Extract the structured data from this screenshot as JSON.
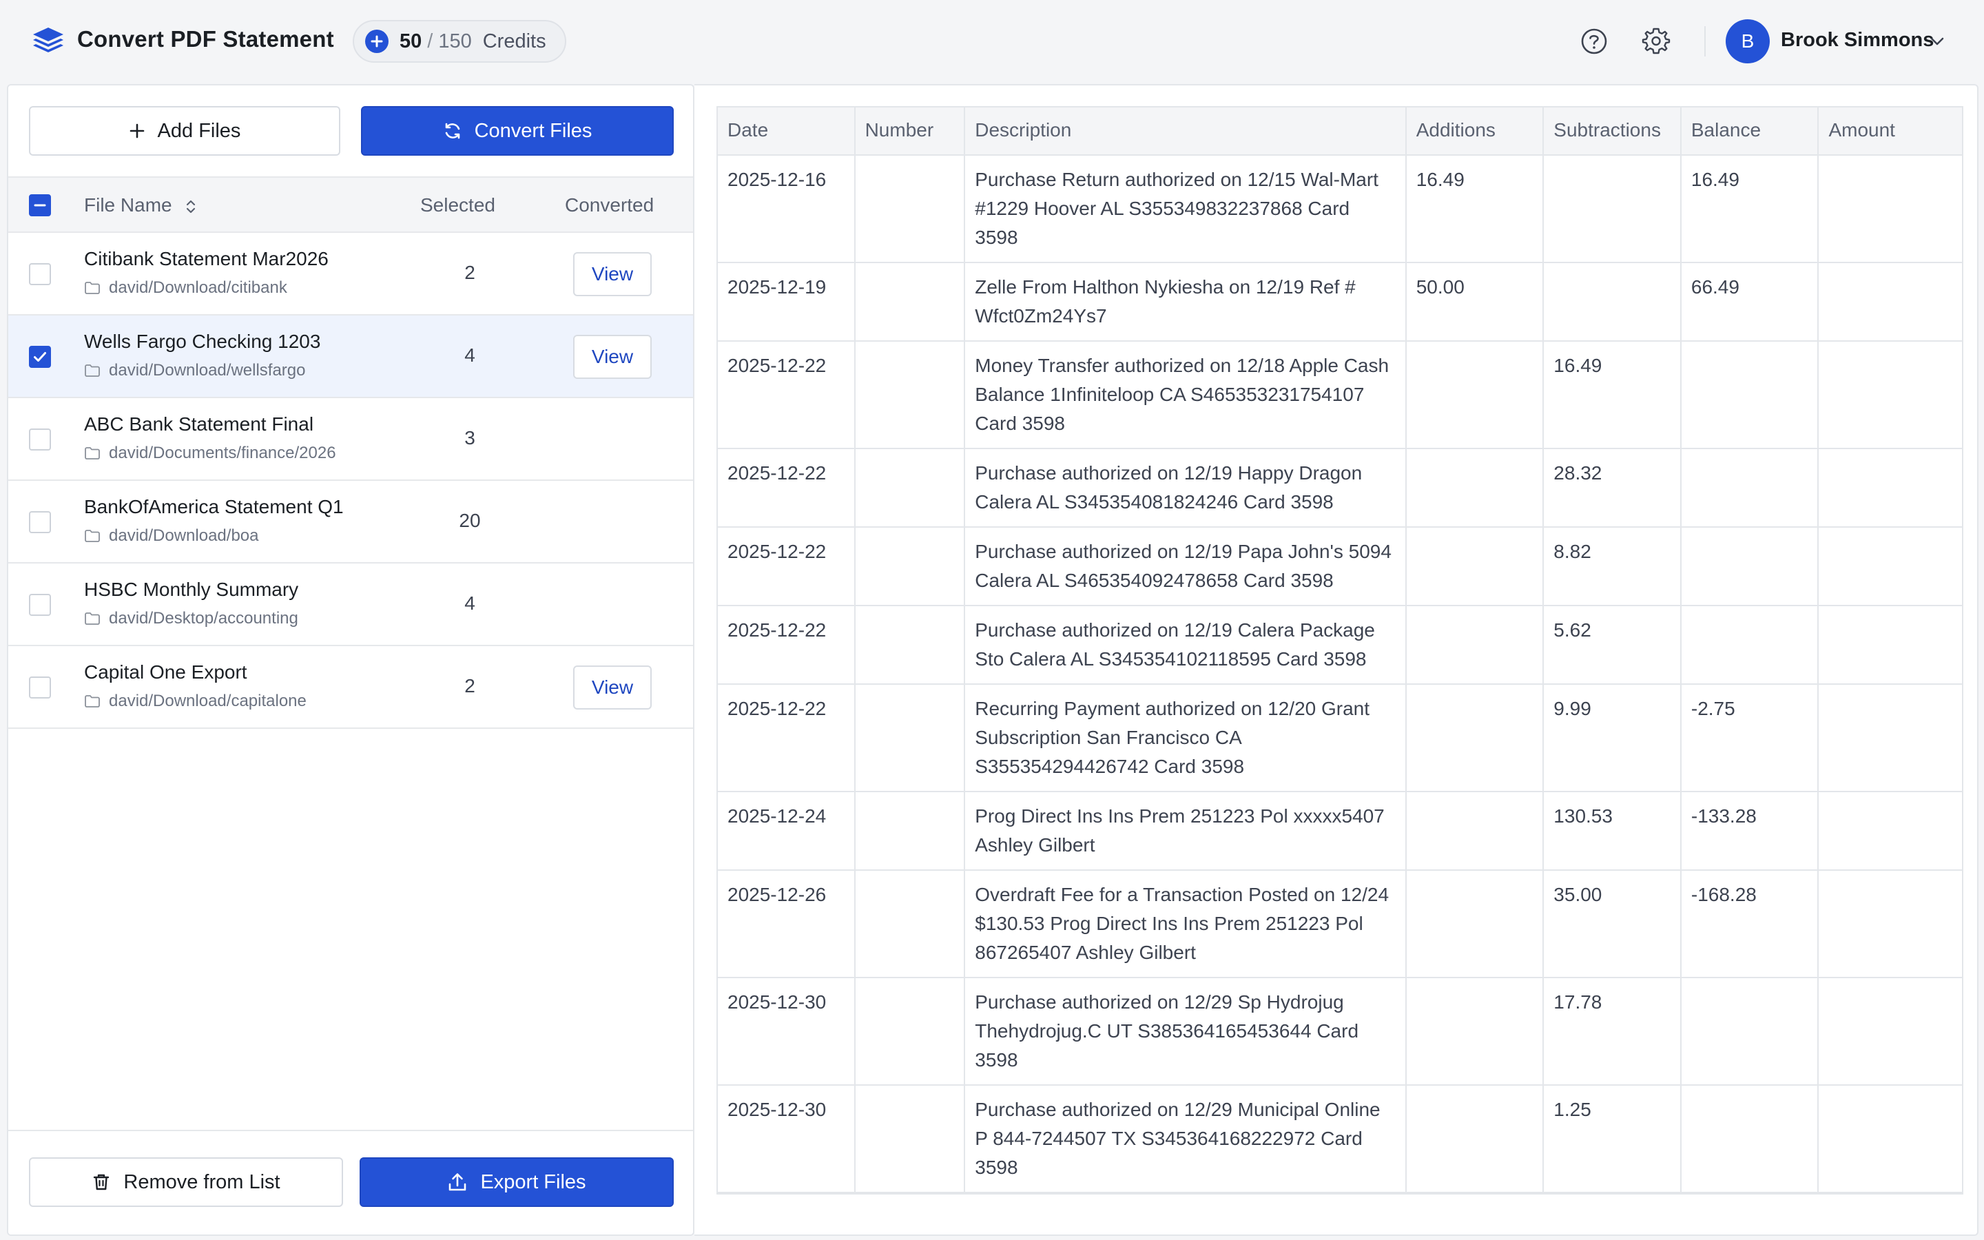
{
  "app": {
    "title": "Convert PDF Statement",
    "credits_used": "50",
    "credits_sep": "/",
    "credits_total": "150",
    "credits_label": "Credits"
  },
  "user": {
    "initial": "B",
    "name": "Brook Simmons"
  },
  "left": {
    "add_files": "Add Files",
    "convert_files": "Convert Files",
    "col_file_name": "File Name",
    "col_selected": "Selected",
    "col_converted": "Converted",
    "remove": "Remove from List",
    "export": "Export Files"
  },
  "files": [
    {
      "name": "Citibank Statement Mar2026",
      "path": "david/Download/citibank",
      "selected": "2",
      "converted": "View",
      "checked": false
    },
    {
      "name": "Wells Fargo Checking 1203",
      "path": "david/Download/wellsfargo",
      "selected": "4",
      "converted": "View",
      "checked": true
    },
    {
      "name": "ABC Bank Statement Final",
      "path": "david/Documents/finance/2026",
      "selected": "3",
      "converted": "",
      "checked": false
    },
    {
      "name": "BankOfAmerica Statement Q1",
      "path": "david/Download/boa",
      "selected": "20",
      "converted": "",
      "checked": false
    },
    {
      "name": "HSBC Monthly Summary",
      "path": "david/Desktop/accounting",
      "selected": "4",
      "converted": "",
      "checked": false
    },
    {
      "name": "Capital One Export",
      "path": "david/Download/capitalone",
      "selected": "2",
      "converted": "View",
      "checked": false
    }
  ],
  "table": {
    "headers": [
      "Date",
      "Number",
      "Description",
      "Additions",
      "Subtractions",
      "Balance",
      "Amount"
    ],
    "rows": [
      [
        "2025-12-16",
        "",
        "Purchase Return authorized on 12/15 Wal-Mart #1229 Hoover AL S355349832237868 Card 3598",
        "16.49",
        "",
        "16.49",
        ""
      ],
      [
        "2025-12-19",
        "",
        "Zelle From Halthon Nykiesha on 12/19 Ref # Wfct0Zm24Ys7",
        "50.00",
        "",
        "66.49",
        ""
      ],
      [
        "2025-12-22",
        "",
        "Money Transfer authorized on 12/18 Apple Cash Balance 1Infiniteloop CA S465353231754107 Card 3598",
        "",
        "16.49",
        "",
        ""
      ],
      [
        "2025-12-22",
        "",
        "Purchase authorized on 12/19 Happy Dragon Calera AL S345354081824246 Card 3598",
        "",
        "28.32",
        "",
        ""
      ],
      [
        "2025-12-22",
        "",
        "Purchase authorized on 12/19 Papa John's 5094 Calera AL S465354092478658 Card 3598",
        "",
        "8.82",
        "",
        ""
      ],
      [
        "2025-12-22",
        "",
        "Purchase authorized on 12/19 Calera Package Sto Calera AL S345354102118595 Card 3598",
        "",
        "5.62",
        "",
        ""
      ],
      [
        "2025-12-22",
        "",
        "Recurring Payment authorized on 12/20 Grant Subscription San Francisco CA S355354294426742 Card 3598",
        "",
        "9.99",
        "-2.75",
        ""
      ],
      [
        "2025-12-24",
        "",
        "Prog Direct Ins Ins Prem 251223 Pol xxxxx5407 Ashley Gilbert",
        "",
        "130.53",
        "-133.28",
        ""
      ],
      [
        "2025-12-26",
        "",
        "Overdraft Fee for a Transaction Posted on 12/24 $130.53 Prog Direct Ins Ins Prem 251223 Pol 867265407 Ashley Gilbert",
        "",
        "35.00",
        "-168.28",
        ""
      ],
      [
        "2025-12-30",
        "",
        "Purchase authorized on 12/29 Sp Hydrojug Thehydrojug.C UT S385364165453644 Card 3598",
        "",
        "17.78",
        "",
        ""
      ],
      [
        "2025-12-30",
        "",
        "Purchase authorized on 12/29 Municipal Online P 844-7244507 TX S345364168222972 Card 3598",
        "",
        "1.25",
        "",
        ""
      ]
    ]
  }
}
